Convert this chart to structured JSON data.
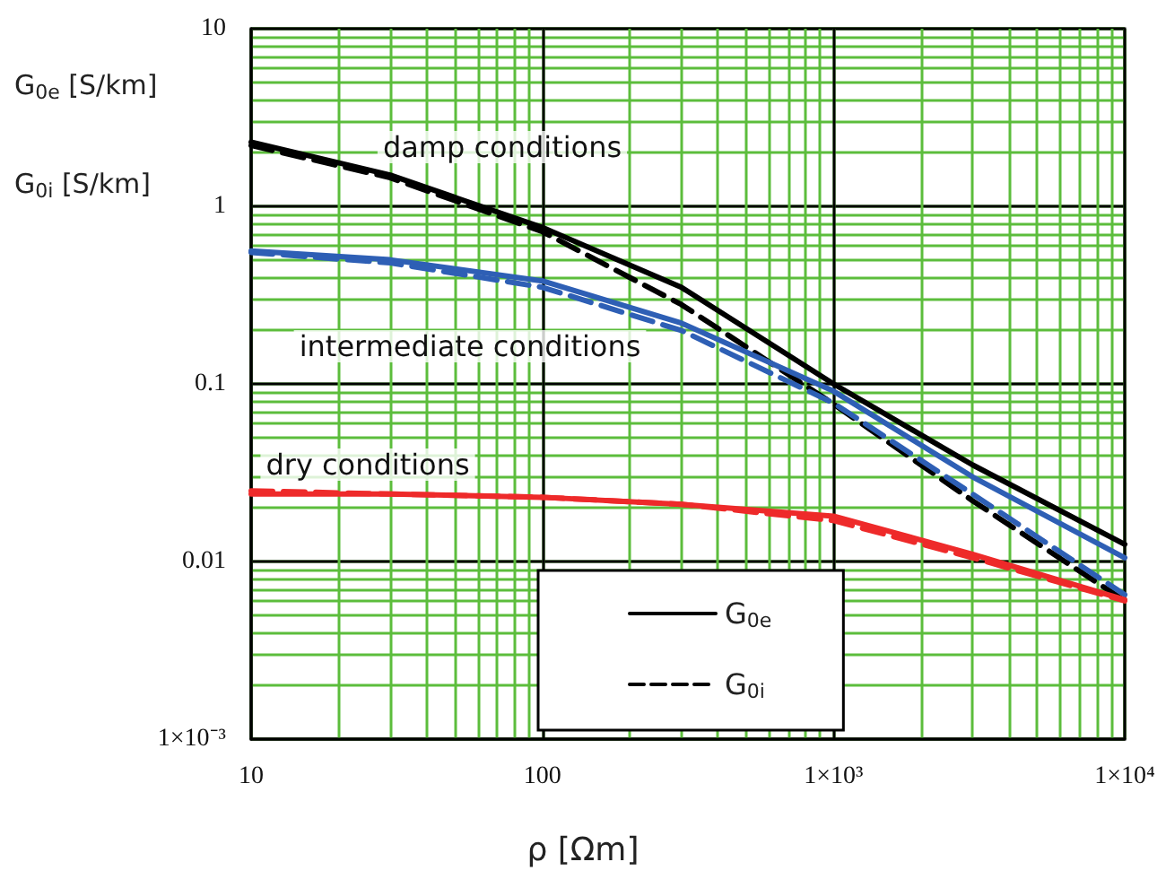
{
  "chart_data": {
    "type": "line",
    "xlabel": "ρ [Ωm]",
    "ylabel": "G$_{0e}$ [S/km]\nG$_{0i}$ [S/km]",
    "log": "xy",
    "grid": true,
    "legend": "bottom",
    "marker": "none",
    "xlim": [
      10,
      10000
    ],
    "ylim": [
      0.001,
      10
    ],
    "xticks": [
      10,
      100,
      {
        "value": 1000,
        "label": "1×10³"
      },
      {
        "value": 10000,
        "label": "1×10⁴"
      }
    ],
    "yticks": [
      {
        "value": 0.001,
        "label": "1×10⁻³"
      },
      0.01,
      0.1,
      1,
      10
    ],
    "x": [
      10,
      30,
      100,
      300,
      1000,
      3000,
      10000
    ],
    "series": [
      {
        "name": "G$_{0e}$",
        "color": "#000000",
        "line_style": "solid",
        "values": [
          2.3,
          1.5,
          0.76,
          0.35,
          0.1,
          0.035,
          0.0125
        ]
      },
      {
        "name": "G$_{0i}$",
        "color": "#000000",
        "line_style": "dashed",
        "values": [
          2.2,
          1.45,
          0.72,
          0.28,
          0.077,
          0.022,
          0.006
        ]
      },
      {
        "color": "#2e5fb5",
        "line_style": "solid",
        "values": [
          0.56,
          0.5,
          0.38,
          0.22,
          0.091,
          0.03,
          0.0105
        ]
      },
      {
        "color": "#2e5fb5",
        "line_style": "dashed",
        "values": [
          0.55,
          0.48,
          0.35,
          0.2,
          0.078,
          0.024,
          0.0065
        ]
      },
      {
        "color": "#ee2a2a",
        "line_style": "solid",
        "values": [
          0.024,
          0.024,
          0.023,
          0.021,
          0.018,
          0.011,
          0.0061
        ]
      },
      {
        "color": "#ee2a2a",
        "line_style": "dashed",
        "values": [
          0.025,
          0.024,
          0.023,
          0.021,
          0.017,
          0.0105,
          0.006
        ]
      }
    ],
    "annotations": [
      "damp conditions",
      "intermediate conditions",
      "dry conditions"
    ]
  }
}
